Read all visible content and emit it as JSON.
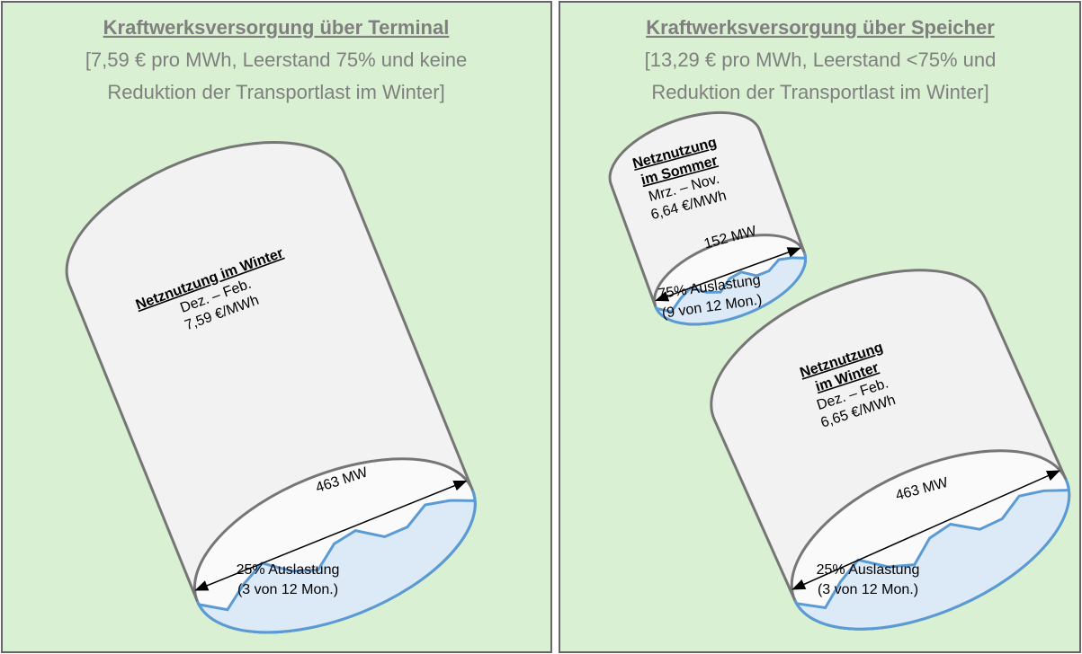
{
  "panels": [
    {
      "title": "Kraftwerksversorgung über Terminal",
      "subtitle": [
        "[7,59 € pro MWh, Leerstand 75% und keine",
        "Reduktion der Transportlast im Winter]"
      ],
      "cylinders": [
        {
          "heading": [
            "Netznutzung im Winter"
          ],
          "lines": [
            "Dez. – Feb.",
            "7,59 €/MWh"
          ],
          "capacity": "463 MW",
          "utilization": [
            "25% Auslastung",
            "(3 von 12 Mon.)"
          ]
        }
      ]
    },
    {
      "title": "Kraftwerksversorgung über Speicher",
      "subtitle": [
        "[13,29 € pro MWh, Leerstand <75% und",
        "Reduktion der Transportlast im Winter]"
      ],
      "cylinders": [
        {
          "heading": [
            "Netznutzung",
            "im Sommer"
          ],
          "lines": [
            "Mrz. – Nov.",
            "6,64 €/MWh"
          ],
          "capacity": "152 MW",
          "utilization": [
            "75% Auslastung",
            "(9 von 12 Mon.)"
          ]
        },
        {
          "heading": [
            "Netznutzung",
            "im Winter"
          ],
          "lines": [
            "Dez. – Feb.",
            "6,65 €/MWh"
          ],
          "capacity": "463 MW",
          "utilization": [
            "25% Auslastung",
            "(3 von 12 Mon.)"
          ]
        }
      ]
    }
  ]
}
